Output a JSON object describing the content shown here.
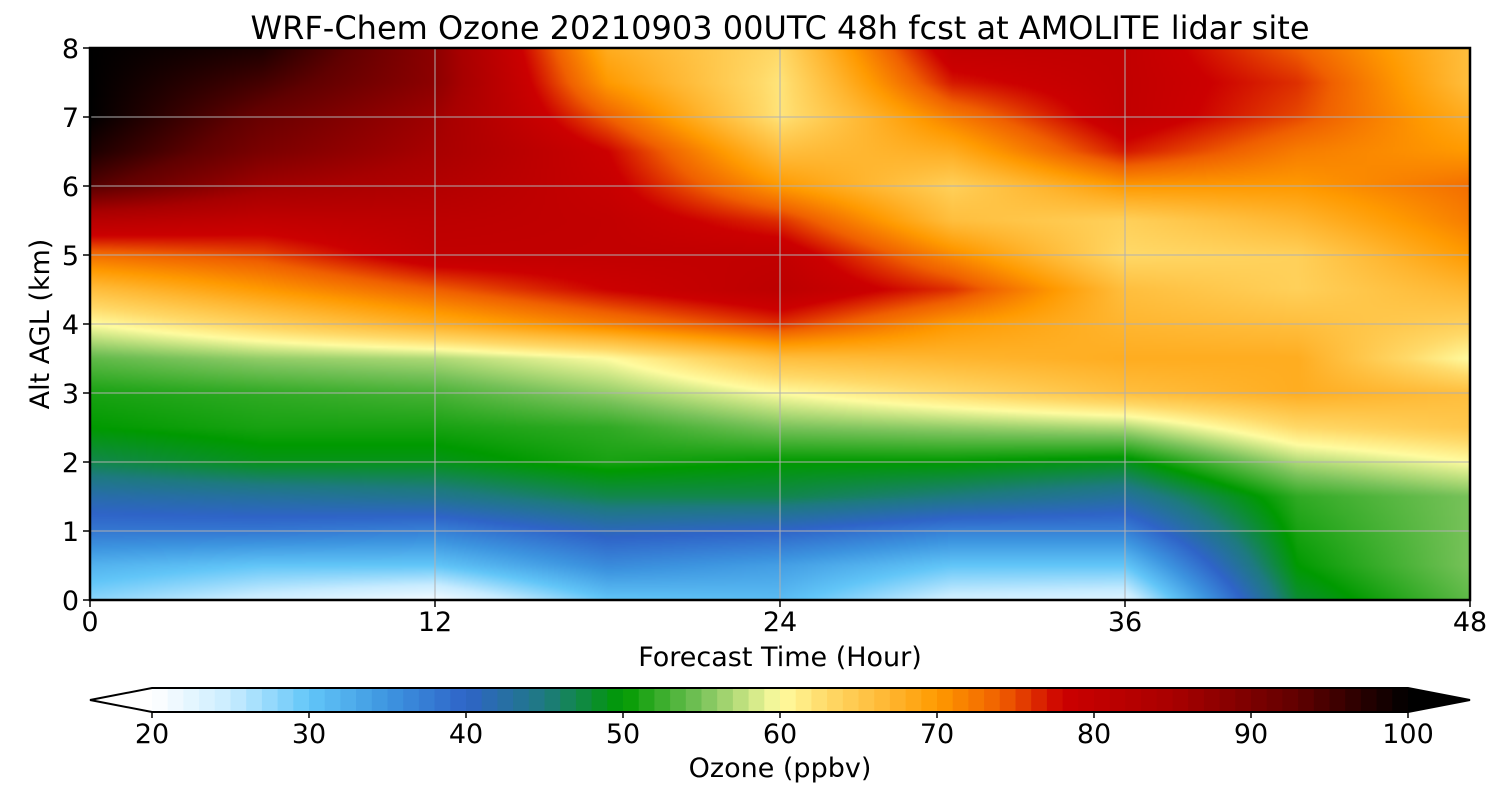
{
  "chart_data": {
    "type": "heatmap",
    "title": "WRF-Chem Ozone  20210903 00UTC 48h fcst at AMOLITE lidar site",
    "xlabel": "Forecast Time (Hour)",
    "ylabel": "Alt AGL (km)",
    "xlim": [
      0,
      48
    ],
    "ylim": [
      0,
      8
    ],
    "xticks": [
      0,
      12,
      24,
      36,
      48
    ],
    "yticks": [
      0,
      1,
      2,
      3,
      4,
      5,
      6,
      7,
      8
    ],
    "grid": true,
    "x": [
      0,
      6,
      12,
      18,
      24,
      30,
      36,
      42,
      48
    ],
    "y": [
      0,
      0.5,
      1,
      1.5,
      2,
      2.5,
      3,
      3.5,
      4,
      4.5,
      5,
      5.5,
      6,
      6.5,
      7,
      7.5,
      8
    ],
    "z": [
      [
        28,
        24,
        21,
        30,
        31,
        24,
        23,
        48,
        54
      ],
      [
        32,
        30,
        30,
        36,
        34,
        30,
        30,
        50,
        55
      ],
      [
        38,
        38,
        37,
        41,
        40,
        37,
        37,
        51,
        55
      ],
      [
        42,
        43,
        44,
        47,
        47,
        45,
        43,
        52,
        55
      ],
      [
        47,
        49,
        49,
        51,
        50,
        50,
        49,
        57,
        60
      ],
      [
        50,
        51,
        51,
        52,
        55,
        56,
        57,
        63,
        65
      ],
      [
        51,
        52,
        53,
        56,
        60,
        63,
        66,
        68,
        66
      ],
      [
        54,
        56,
        57,
        60,
        66,
        67,
        68,
        68,
        60
      ],
      [
        60,
        64,
        68,
        72,
        76,
        70,
        67,
        66,
        64
      ],
      [
        66,
        70,
        74,
        78,
        81,
        76,
        66,
        64,
        67
      ],
      [
        73,
        75,
        80,
        80,
        80,
        71,
        63,
        64,
        70
      ],
      [
        82,
        80,
        81,
        80,
        76,
        66,
        64,
        67,
        72
      ],
      [
        94,
        86,
        83,
        79,
        70,
        64,
        70,
        70,
        73
      ],
      [
        98,
        90,
        85,
        78,
        66,
        68,
        77,
        72,
        70
      ],
      [
        100,
        92,
        86,
        74,
        62,
        72,
        80,
        75,
        68
      ],
      [
        100,
        95,
        88,
        70,
        62,
        77,
        80,
        76,
        66
      ],
      [
        100,
        98,
        88,
        68,
        63,
        80,
        80,
        74,
        66
      ]
    ],
    "colorbar": {
      "label": "Ozone  (ppbv)",
      "min": 20,
      "max": 100,
      "ticks": [
        "20",
        "30",
        "40",
        "50",
        "60",
        "70",
        "80",
        "90",
        "100"
      ],
      "extend": "both"
    },
    "colormap": [
      [
        20,
        "#ffffff"
      ],
      [
        25,
        "#c8ecff"
      ],
      [
        30,
        "#62c6f8"
      ],
      [
        35,
        "#3d95e0"
      ],
      [
        40,
        "#2f64c8"
      ],
      [
        45,
        "#1e7a80"
      ],
      [
        50,
        "#009a00"
      ],
      [
        55,
        "#78c25a"
      ],
      [
        60,
        "#fffca0"
      ],
      [
        63,
        "#ffd968"
      ],
      [
        67,
        "#ffb630"
      ],
      [
        70,
        "#ff9a00"
      ],
      [
        74,
        "#f06000"
      ],
      [
        78,
        "#cc0000"
      ],
      [
        85,
        "#a80000"
      ],
      [
        93,
        "#600000"
      ],
      [
        100,
        "#000000"
      ]
    ]
  }
}
